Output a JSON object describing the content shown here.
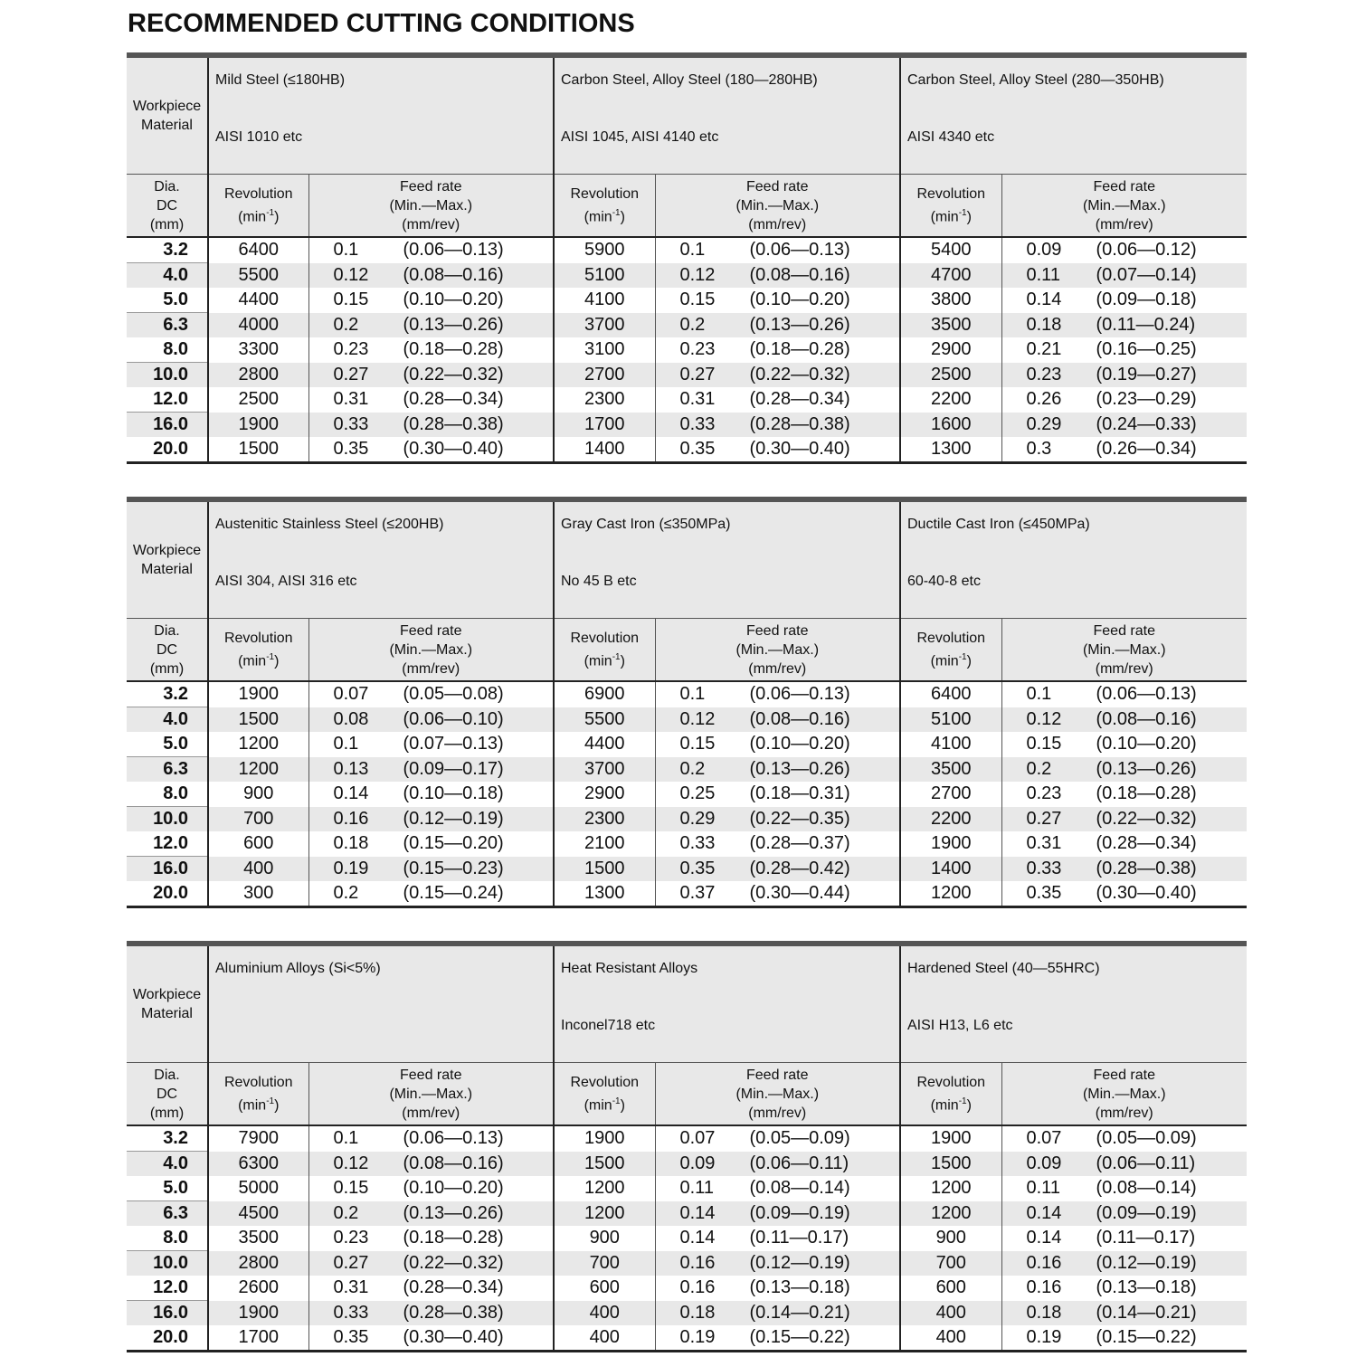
{
  "title": "RECOMMENDED CUTTING CONDITIONS",
  "labels": {
    "workpiece_material": [
      "Workpiece",
      "Material"
    ],
    "dia": [
      "Dia.",
      "DC",
      "(mm)"
    ],
    "revolution": [
      "Revolution",
      "(min",
      "-1",
      ")"
    ],
    "feed_rate": [
      "Feed rate",
      "(Min.—Max.)",
      "(mm/rev)"
    ]
  },
  "diameters": [
    "3.2",
    "4.0",
    "5.0",
    "6.3",
    "8.0",
    "10.0",
    "12.0",
    "16.0",
    "20.0"
  ],
  "tables": [
    {
      "materials": [
        {
          "name": "Mild Steel (≤180HB)",
          "code": "AISI 1010 etc",
          "rows": [
            [
              "6400",
              "0.1",
              "(0.06—0.13)"
            ],
            [
              "5500",
              "0.12",
              "(0.08—0.16)"
            ],
            [
              "4400",
              "0.15",
              "(0.10—0.20)"
            ],
            [
              "4000",
              "0.2",
              "(0.13—0.26)"
            ],
            [
              "3300",
              "0.23",
              "(0.18—0.28)"
            ],
            [
              "2800",
              "0.27",
              "(0.22—0.32)"
            ],
            [
              "2500",
              "0.31",
              "(0.28—0.34)"
            ],
            [
              "1900",
              "0.33",
              "(0.28—0.38)"
            ],
            [
              "1500",
              "0.35",
              "(0.30—0.40)"
            ]
          ]
        },
        {
          "name": "Carbon Steel, Alloy Steel (180—280HB)",
          "code": "AISI 1045, AISI 4140 etc",
          "rows": [
            [
              "5900",
              "0.1",
              "(0.06—0.13)"
            ],
            [
              "5100",
              "0.12",
              "(0.08—0.16)"
            ],
            [
              "4100",
              "0.15",
              "(0.10—0.20)"
            ],
            [
              "3700",
              "0.2",
              "(0.13—0.26)"
            ],
            [
              "3100",
              "0.23",
              "(0.18—0.28)"
            ],
            [
              "2700",
              "0.27",
              "(0.22—0.32)"
            ],
            [
              "2300",
              "0.31",
              "(0.28—0.34)"
            ],
            [
              "1700",
              "0.33",
              "(0.28—0.38)"
            ],
            [
              "1400",
              "0.35",
              "(0.30—0.40)"
            ]
          ]
        },
        {
          "name": "Carbon Steel, Alloy Steel (280—350HB)",
          "code": "AISI 4340 etc",
          "rows": [
            [
              "5400",
              "0.09",
              "(0.06—0.12)"
            ],
            [
              "4700",
              "0.11",
              "(0.07—0.14)"
            ],
            [
              "3800",
              "0.14",
              "(0.09—0.18)"
            ],
            [
              "3500",
              "0.18",
              "(0.11—0.24)"
            ],
            [
              "2900",
              "0.21",
              "(0.16—0.25)"
            ],
            [
              "2500",
              "0.23",
              "(0.19—0.27)"
            ],
            [
              "2200",
              "0.26",
              "(0.23—0.29)"
            ],
            [
              "1600",
              "0.29",
              "(0.24—0.33)"
            ],
            [
              "1300",
              "0.3",
              "(0.26—0.34)"
            ]
          ]
        }
      ]
    },
    {
      "materials": [
        {
          "name": "Austenitic Stainless Steel (≤200HB)",
          "code": "AISI 304, AISI 316 etc",
          "rows": [
            [
              "1900",
              "0.07",
              "(0.05—0.08)"
            ],
            [
              "1500",
              "0.08",
              "(0.06—0.10)"
            ],
            [
              "1200",
              "0.1",
              "(0.07—0.13)"
            ],
            [
              "1200",
              "0.13",
              "(0.09—0.17)"
            ],
            [
              "900",
              "0.14",
              "(0.10—0.18)"
            ],
            [
              "700",
              "0.16",
              "(0.12—0.19)"
            ],
            [
              "600",
              "0.18",
              "(0.15—0.20)"
            ],
            [
              "400",
              "0.19",
              "(0.15—0.23)"
            ],
            [
              "300",
              "0.2",
              "(0.15—0.24)"
            ]
          ]
        },
        {
          "name": "Gray Cast Iron (≤350MPa)",
          "code": "No 45 B etc",
          "rows": [
            [
              "6900",
              "0.1",
              "(0.06—0.13)"
            ],
            [
              "5500",
              "0.12",
              "(0.08—0.16)"
            ],
            [
              "4400",
              "0.15",
              "(0.10—0.20)"
            ],
            [
              "3700",
              "0.2",
              "(0.13—0.26)"
            ],
            [
              "2900",
              "0.25",
              "(0.18—0.31)"
            ],
            [
              "2300",
              "0.29",
              "(0.22—0.35)"
            ],
            [
              "2100",
              "0.33",
              "(0.28—0.37)"
            ],
            [
              "1500",
              "0.35",
              "(0.28—0.42)"
            ],
            [
              "1300",
              "0.37",
              "(0.30—0.44)"
            ]
          ]
        },
        {
          "name": "Ductile Cast Iron (≤450MPa)",
          "code": "60-40-8 etc",
          "rows": [
            [
              "6400",
              "0.1",
              "(0.06—0.13)"
            ],
            [
              "5100",
              "0.12",
              "(0.08—0.16)"
            ],
            [
              "4100",
              "0.15",
              "(0.10—0.20)"
            ],
            [
              "3500",
              "0.2",
              "(0.13—0.26)"
            ],
            [
              "2700",
              "0.23",
              "(0.18—0.28)"
            ],
            [
              "2200",
              "0.27",
              "(0.22—0.32)"
            ],
            [
              "1900",
              "0.31",
              "(0.28—0.34)"
            ],
            [
              "1400",
              "0.33",
              "(0.28—0.38)"
            ],
            [
              "1200",
              "0.35",
              "(0.30—0.40)"
            ]
          ]
        }
      ]
    },
    {
      "materials": [
        {
          "name": "Aluminium Alloys (Si<5%)",
          "code": "",
          "rows": [
            [
              "7900",
              "0.1",
              "(0.06—0.13)"
            ],
            [
              "6300",
              "0.12",
              "(0.08—0.16)"
            ],
            [
              "5000",
              "0.15",
              "(0.10—0.20)"
            ],
            [
              "4500",
              "0.2",
              "(0.13—0.26)"
            ],
            [
              "3500",
              "0.23",
              "(0.18—0.28)"
            ],
            [
              "2800",
              "0.27",
              "(0.22—0.32)"
            ],
            [
              "2600",
              "0.31",
              "(0.28—0.34)"
            ],
            [
              "1900",
              "0.33",
              "(0.28—0.38)"
            ],
            [
              "1700",
              "0.35",
              "(0.30—0.40)"
            ]
          ]
        },
        {
          "name": "Heat Resistant Alloys",
          "code": "Inconel718 etc",
          "rows": [
            [
              "1900",
              "0.07",
              "(0.05—0.09)"
            ],
            [
              "1500",
              "0.09",
              "(0.06—0.11)"
            ],
            [
              "1200",
              "0.11",
              "(0.08—0.14)"
            ],
            [
              "1200",
              "0.14",
              "(0.09—0.19)"
            ],
            [
              "900",
              "0.14",
              "(0.11—0.17)"
            ],
            [
              "700",
              "0.16",
              "(0.12—0.19)"
            ],
            [
              "600",
              "0.16",
              "(0.13—0.18)"
            ],
            [
              "400",
              "0.18",
              "(0.14—0.21)"
            ],
            [
              "400",
              "0.19",
              "(0.15—0.22)"
            ]
          ]
        },
        {
          "name": "Hardened Steel (40—55HRC)",
          "code": "AISI H13, L6 etc",
          "rows": [
            [
              "1900",
              "0.07",
              "(0.05—0.09)"
            ],
            [
              "1500",
              "0.09",
              "(0.06—0.11)"
            ],
            [
              "1200",
              "0.11",
              "(0.08—0.14)"
            ],
            [
              "1200",
              "0.14",
              "(0.09—0.19)"
            ],
            [
              "900",
              "0.14",
              "(0.11—0.17)"
            ],
            [
              "700",
              "0.16",
              "(0.12—0.19)"
            ],
            [
              "600",
              "0.16",
              "(0.13—0.18)"
            ],
            [
              "400",
              "0.18",
              "(0.14—0.21)"
            ],
            [
              "400",
              "0.19",
              "(0.15—0.22)"
            ]
          ]
        }
      ]
    }
  ]
}
